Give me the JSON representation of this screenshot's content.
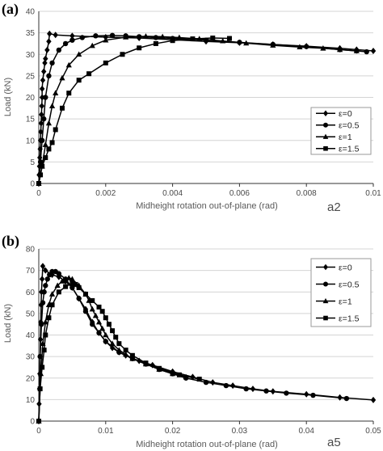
{
  "chart_data": [
    {
      "type": "line",
      "panel": "(a)",
      "tag": "a2",
      "xlabel": "Midheight rotation out-of-plane (rad)",
      "ylabel": "Load (kN)",
      "xlim": [
        0,
        0.01
      ],
      "ylim": [
        0,
        40
      ],
      "xticks": [
        0,
        0.002,
        0.004,
        0.006,
        0.008,
        0.01
      ],
      "xtick_labels": [
        "0",
        "0.002",
        "0.004",
        "0.006",
        "0.008",
        "0.01"
      ],
      "yticks": [
        0,
        5,
        10,
        15,
        20,
        25,
        30,
        35,
        40
      ],
      "ytick_labels": [
        "0",
        "5",
        "10",
        "15",
        "20",
        "25",
        "30",
        "35",
        "40"
      ],
      "grid": "horizontal",
      "legend": "right",
      "series": [
        {
          "name": "ε=0",
          "marker": "diamond",
          "x": [
            0,
            1e-05,
            2e-05,
            3e-05,
            4e-05,
            5e-05,
            6e-05,
            7e-05,
            8e-05,
            9e-05,
            0.0001,
            0.0001,
            0.00012,
            0.00015,
            0.00018,
            0.0002,
            0.00025,
            0.0003,
            0.00032,
            0.0005,
            0.001,
            0.002,
            0.003,
            0.004,
            0.005,
            0.006,
            0.007,
            0.008,
            0.009,
            0.0095,
            0.01
          ],
          "y": [
            0,
            2,
            4,
            6,
            8,
            10,
            12,
            14,
            16,
            18,
            20,
            22,
            24,
            26,
            28,
            29,
            31,
            33,
            34.8,
            34.5,
            34.3,
            34.0,
            33.8,
            33.4,
            33.0,
            32.7,
            32.3,
            31.9,
            31.4,
            31.1,
            30.8
          ]
        },
        {
          "name": "ε=0.5",
          "marker": "circle",
          "x": [
            0,
            5e-05,
            0.0001,
            0.00015,
            0.0002,
            0.0003,
            0.0004,
            0.0006,
            0.0008,
            0.001,
            0.0013,
            0.0017,
            0.0022,
            0.0026,
            0.003,
            0.0035,
            0.004,
            0.005,
            0.006,
            0.007,
            0.008,
            0.009,
            0.0095,
            0.0098
          ],
          "y": [
            0,
            5,
            10,
            15,
            20,
            25,
            28,
            31,
            32.5,
            33.3,
            33.9,
            34.3,
            34.4,
            34.3,
            34.1,
            33.9,
            33.7,
            33.3,
            32.8,
            32.3,
            31.8,
            31.1,
            30.8,
            30.6
          ]
        },
        {
          "name": "ε=1",
          "marker": "triangle",
          "x": [
            0,
            0.0001,
            0.0002,
            0.0003,
            0.0004,
            0.0005,
            0.0007,
            0.0009,
            0.0012,
            0.0016,
            0.002,
            0.0026,
            0.0032,
            0.0037,
            0.0042,
            0.0048,
            0.0055,
            0.0062,
            0.007,
            0.0078,
            0.0085,
            0.009,
            0.0095
          ],
          "y": [
            0,
            4,
            9,
            14,
            18,
            21,
            24.5,
            27.5,
            30,
            32,
            33.3,
            34,
            34.2,
            34.1,
            33.9,
            33.6,
            33.1,
            32.6,
            32.1,
            31.7,
            31.4,
            31.1,
            30.8
          ]
        },
        {
          "name": "ε=1.5",
          "marker": "square",
          "x": [
            0,
            5e-05,
            0.0001,
            0.0002,
            0.0003,
            0.0004,
            0.0005,
            0.0007,
            0.0009,
            0.0012,
            0.0015,
            0.002,
            0.0025,
            0.003,
            0.0035,
            0.004,
            0.0046,
            0.0052,
            0.0057
          ],
          "y": [
            0,
            2,
            4,
            6,
            8,
            9.5,
            12.5,
            17.5,
            21,
            24,
            25.5,
            28,
            30,
            31.5,
            32.5,
            33.2,
            33.6,
            33.8,
            33.7
          ]
        }
      ]
    },
    {
      "type": "line",
      "panel": "(b)",
      "tag": "a5",
      "xlabel": "Midheight rotation out-of-plane (rad)",
      "ylabel": "Load (kN)",
      "xlim": [
        0,
        0.05
      ],
      "ylim": [
        0,
        80
      ],
      "xticks": [
        0,
        0.01,
        0.02,
        0.03,
        0.04,
        0.05
      ],
      "xtick_labels": [
        "0",
        "0.01",
        "0.02",
        "0.03",
        "0.04",
        "0.05"
      ],
      "yticks": [
        0,
        10,
        20,
        30,
        40,
        50,
        60,
        70,
        80
      ],
      "ytick_labels": [
        "0",
        "10",
        "20",
        "30",
        "40",
        "50",
        "60",
        "70",
        "80"
      ],
      "grid": "horizontal",
      "legend": "top-right",
      "series": [
        {
          "name": "ε=0",
          "marker": "diamond",
          "x": [
            0,
            5e-05,
            0.0001,
            0.00015,
            0.0002,
            0.00025,
            0.0003,
            0.00035,
            0.0004,
            0.0005,
            0.0006,
            0.001,
            0.002,
            0.003,
            0.004,
            0.005,
            0.006,
            0.007,
            0.008,
            0.009,
            0.01,
            0.011,
            0.012,
            0.013,
            0.015,
            0.017,
            0.02,
            0.023,
            0.026,
            0.029,
            0.032,
            0.035,
            0.04,
            0.045,
            0.05
          ],
          "y": [
            0,
            8,
            15,
            22,
            30,
            38,
            46,
            54,
            60,
            66,
            72,
            70,
            68,
            67,
            65,
            62,
            57,
            52,
            46,
            41,
            37,
            34,
            32,
            30.5,
            28,
            26,
            23,
            20.5,
            18,
            16.5,
            15,
            13.8,
            12.5,
            11,
            9.8
          ]
        },
        {
          "name": "ε=0.5",
          "marker": "circle",
          "x": [
            0,
            0.0002,
            0.0004,
            0.0006,
            0.0008,
            0.001,
            0.0013,
            0.0016,
            0.002,
            0.0025,
            0.003,
            0.004,
            0.005,
            0.006,
            0.007,
            0.008,
            0.009,
            0.01,
            0.012,
            0.014,
            0.016,
            0.018,
            0.02,
            0.022,
            0.025,
            0.028,
            0.031,
            0.034,
            0.037,
            0.041,
            0.046
          ],
          "y": [
            0,
            30,
            45,
            55,
            60,
            63,
            66,
            68,
            69.5,
            69.5,
            68.5,
            66,
            62,
            57,
            51,
            45,
            41,
            37,
            32,
            29,
            26.5,
            24,
            22,
            20,
            18,
            16.5,
            15,
            14,
            13,
            12,
            10.5
          ]
        },
        {
          "name": "ε=1",
          "marker": "triangle",
          "x": [
            0,
            0.0003,
            0.0006,
            0.001,
            0.0015,
            0.002,
            0.0028,
            0.0035,
            0.004,
            0.0045,
            0.005,
            0.006,
            0.007,
            0.0075,
            0.008,
            0.0085,
            0.009,
            0.0095,
            0.01,
            0.011,
            0.012,
            0.013,
            0.014,
            0.016,
            0.018,
            0.02,
            0.022
          ],
          "y": [
            0,
            22,
            36,
            46,
            54,
            59,
            63,
            65,
            66,
            66.5,
            66,
            63,
            59,
            56,
            52,
            49,
            46,
            43,
            40,
            36,
            33,
            31,
            29,
            26.5,
            24,
            22,
            20.5
          ]
        },
        {
          "name": "ε=1.5",
          "marker": "square",
          "x": [
            0,
            0.0002,
            0.0005,
            0.0008,
            0.001,
            0.0015,
            0.002,
            0.003,
            0.004,
            0.005,
            0.0055,
            0.006,
            0.007,
            0.008,
            0.009,
            0.0095,
            0.01,
            0.0105,
            0.011,
            0.0115,
            0.012,
            0.013,
            0.014,
            0.016,
            0.018,
            0.021,
            0.024
          ],
          "y": [
            0,
            15,
            25,
            33,
            40,
            48,
            54,
            60,
            62.5,
            64,
            63.5,
            62,
            59,
            56,
            53,
            51,
            48,
            45,
            42,
            39,
            36,
            33,
            30.5,
            27,
            24.5,
            21.5,
            19.5
          ]
        }
      ]
    }
  ]
}
